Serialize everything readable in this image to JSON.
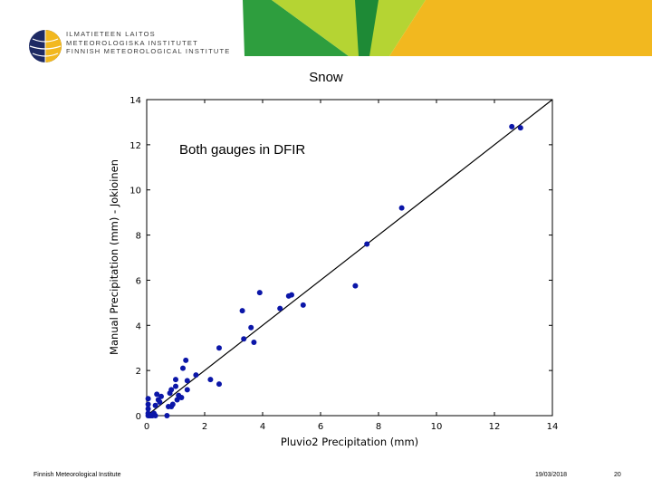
{
  "header": {
    "logo_lines": [
      "ILMATIETEEN LAITOS",
      "METEOROLOGISKA INSTITUTET",
      "FINNISH METEOROLOGICAL INSTITUTE"
    ],
    "colors": {
      "green": "#2e9e3e",
      "lime": "#b5d433",
      "yellow": "#f2b81f",
      "navy": "#1d2a63"
    }
  },
  "slide": {
    "title": "Snow"
  },
  "footer": {
    "org": "Finnish Meteorological Institute",
    "date": "19/03/2018",
    "page": "20"
  },
  "chart_data": {
    "type": "scatter",
    "title": "",
    "annotation": "Both gauges in DFIR",
    "xlabel": "Pluvio2 Precipitation (mm)",
    "ylabel": "Manual Precipitation (mm) - Jokioinen",
    "xlim": [
      0,
      14
    ],
    "ylim": [
      0,
      14
    ],
    "xticks": [
      0,
      2,
      4,
      6,
      8,
      10,
      12,
      14
    ],
    "yticks": [
      0,
      2,
      4,
      6,
      8,
      10,
      12,
      14
    ],
    "grid": false,
    "marker_color": "#0b16a8",
    "reference_line": {
      "from": [
        0,
        0
      ],
      "to": [
        14,
        14
      ]
    },
    "points": [
      [
        0.05,
        0.0
      ],
      [
        0.05,
        0.1
      ],
      [
        0.05,
        0.3
      ],
      [
        0.05,
        0.5
      ],
      [
        0.05,
        0.75
      ],
      [
        0.1,
        0.0
      ],
      [
        0.15,
        0.0
      ],
      [
        0.2,
        0.0
      ],
      [
        0.25,
        0.1
      ],
      [
        0.3,
        0.0
      ],
      [
        0.3,
        0.45
      ],
      [
        0.35,
        0.95
      ],
      [
        0.4,
        0.7
      ],
      [
        0.45,
        0.6
      ],
      [
        0.5,
        0.85
      ],
      [
        0.7,
        0.0
      ],
      [
        0.75,
        0.4
      ],
      [
        0.8,
        1.0
      ],
      [
        0.85,
        0.4
      ],
      [
        0.9,
        0.5
      ],
      [
        0.85,
        1.15
      ],
      [
        1.0,
        1.3
      ],
      [
        1.0,
        1.6
      ],
      [
        1.05,
        0.7
      ],
      [
        1.1,
        0.9
      ],
      [
        1.2,
        0.8
      ],
      [
        1.25,
        2.1
      ],
      [
        1.35,
        2.45
      ],
      [
        1.4,
        1.15
      ],
      [
        1.4,
        1.55
      ],
      [
        1.7,
        1.8
      ],
      [
        2.2,
        1.6
      ],
      [
        2.5,
        3.0
      ],
      [
        2.5,
        1.4
      ],
      [
        3.3,
        4.65
      ],
      [
        3.35,
        3.4
      ],
      [
        3.6,
        3.9
      ],
      [
        3.7,
        3.25
      ],
      [
        3.9,
        5.45
      ],
      [
        4.6,
        4.75
      ],
      [
        4.9,
        5.3
      ],
      [
        5.0,
        5.35
      ],
      [
        5.4,
        4.9
      ],
      [
        7.2,
        5.75
      ],
      [
        7.6,
        7.6
      ],
      [
        8.8,
        9.2
      ],
      [
        12.6,
        12.8
      ],
      [
        12.9,
        12.75
      ]
    ]
  }
}
